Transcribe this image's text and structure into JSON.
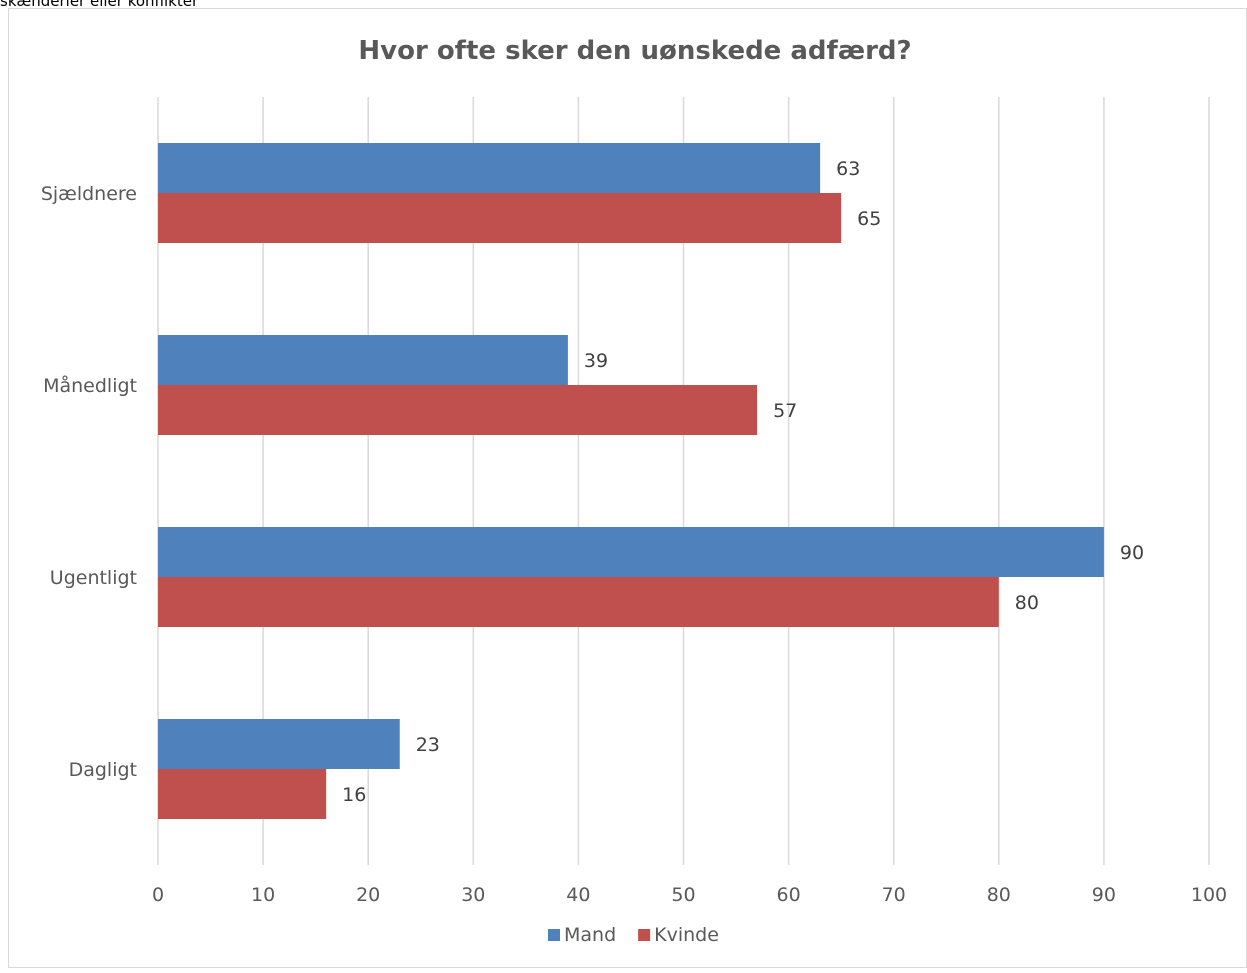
{
  "caption": "skænderier eller konflikter",
  "chart_data": {
    "type": "bar",
    "orientation": "horizontal",
    "title": "Hvor ofte sker den uønskede adfærd?",
    "xlabel": "",
    "ylabel": "",
    "categories": [
      "Sjældnere",
      "Månedligt",
      "Ugentligt",
      "Dagligt"
    ],
    "series": [
      {
        "name": "Mand",
        "color": "#4f81bd",
        "values": [
          63,
          39,
          90,
          23
        ]
      },
      {
        "name": "Kvinde",
        "color": "#c0504d",
        "values": [
          65,
          57,
          80,
          16
        ]
      }
    ],
    "xlim": [
      0,
      100
    ],
    "xticks": [
      "0",
      "10",
      "20",
      "30",
      "40",
      "50",
      "60",
      "70",
      "80",
      "90",
      "100"
    ],
    "grid": true,
    "data_labels": true,
    "legend_position": "bottom"
  }
}
